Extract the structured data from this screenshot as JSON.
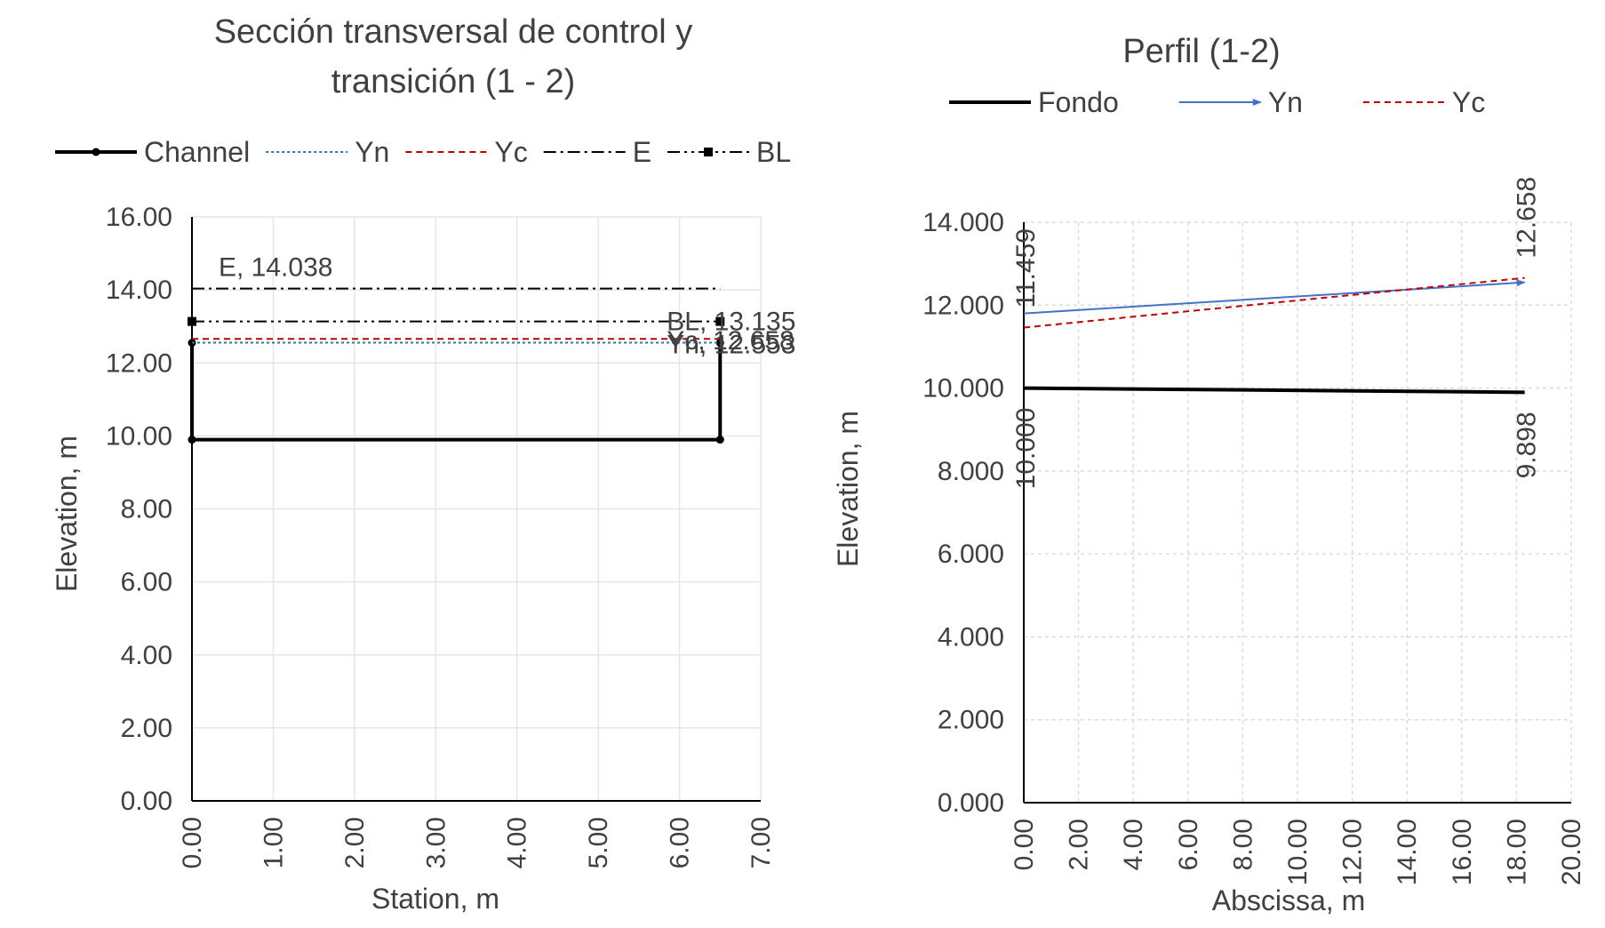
{
  "chart_data": [
    {
      "type": "line",
      "title_lines": [
        "Sección transversal de control y",
        "transición (1 - 2)"
      ],
      "xlabel": "Station, m",
      "ylabel": "Elevation, m",
      "xlim": [
        0,
        7
      ],
      "ylim": [
        0,
        16
      ],
      "xticks": [
        "0.00",
        "1.00",
        "2.00",
        "3.00",
        "4.00",
        "5.00",
        "6.00",
        "7.00"
      ],
      "yticks": [
        "0.00",
        "2.00",
        "4.00",
        "6.00",
        "8.00",
        "10.00",
        "12.00",
        "14.00",
        "16.00"
      ],
      "legend_position": "top",
      "series": [
        {
          "name": "Channel",
          "color": "#000000",
          "style": "solid-marker",
          "points": [
            [
              0,
              12.55
            ],
            [
              0,
              9.898
            ],
            [
              6.5,
              9.898
            ],
            [
              6.5,
              12.55
            ]
          ]
        },
        {
          "name": "Yn",
          "color": "#2e75b6",
          "style": "dotted",
          "points": [
            [
              0,
              12.553
            ],
            [
              6.5,
              12.553
            ]
          ],
          "end_label": "Yn, 12.553"
        },
        {
          "name": "Yc",
          "color": "#c00000",
          "style": "dashed",
          "points": [
            [
              0,
              12.658
            ],
            [
              6.5,
              12.658
            ]
          ],
          "end_label": "Yc, 12.658"
        },
        {
          "name": "E",
          "color": "#000000",
          "style": "dash-dot",
          "points": [
            [
              0,
              14.038
            ],
            [
              6.5,
              14.038
            ]
          ],
          "start_label": "E, 14.038"
        },
        {
          "name": "BL",
          "color": "#000000",
          "style": "dash-dot-dot-marker",
          "points": [
            [
              0,
              13.135
            ],
            [
              6.5,
              13.135
            ]
          ],
          "end_label": "BL, 13.135"
        }
      ]
    },
    {
      "type": "line",
      "title_lines": [
        "Perfil (1-2)"
      ],
      "xlabel": "Abscissa, m",
      "ylabel": "Elevation, m",
      "xlim": [
        0,
        20
      ],
      "ylim": [
        0,
        14
      ],
      "xticks": [
        "0.00",
        "2.00",
        "4.00",
        "6.00",
        "8.00",
        "10.00",
        "12.00",
        "14.00",
        "16.00",
        "18.00",
        "20.00"
      ],
      "yticks": [
        "0.000",
        "2.000",
        "4.000",
        "6.000",
        "8.000",
        "10.000",
        "12.000",
        "14.000"
      ],
      "legend_position": "top",
      "series": [
        {
          "name": "Fondo",
          "color": "#000000",
          "style": "solid-thick",
          "points": [
            [
              0,
              10.0
            ],
            [
              18.3,
              9.898
            ]
          ],
          "point_labels": [
            "10.000",
            "9.898"
          ]
        },
        {
          "name": "Yn",
          "color": "#4472c4",
          "style": "arrow",
          "points": [
            [
              0,
              11.8
            ],
            [
              18.3,
              12.55
            ]
          ]
        },
        {
          "name": "Yc",
          "color": "#c00000",
          "style": "dashed",
          "points": [
            [
              0,
              11.459
            ],
            [
              18.3,
              12.658
            ]
          ],
          "point_labels": [
            "11.459",
            "12.658"
          ]
        }
      ]
    }
  ]
}
